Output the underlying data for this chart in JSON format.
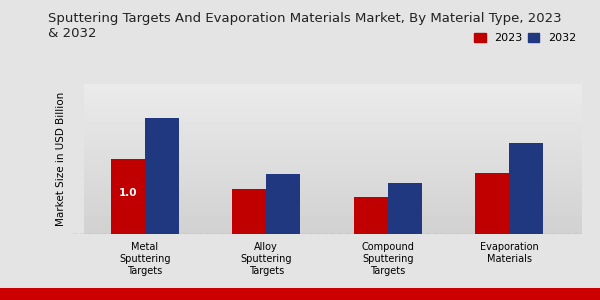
{
  "title": "Sputtering Targets And Evaporation Materials Market, By Material Type, 2023\n& 2032",
  "ylabel": "Market Size in USD Billion",
  "categories": [
    "Metal\nSputtering\nTargets",
    "Alloy\nSputtering\nTargets",
    "Compound\nSputtering\nTargets",
    "Evaporation\nMaterials"
  ],
  "values_2023": [
    1.0,
    0.6,
    0.5,
    0.82
  ],
  "values_2032": [
    1.55,
    0.8,
    0.68,
    1.22
  ],
  "color_2023": "#c00000",
  "color_2032": "#1f3880",
  "bar_annotation_text": "1.0",
  "annotation_fontsize": 7.5,
  "title_fontsize": 9.5,
  "ylabel_fontsize": 7.5,
  "legend_labels": [
    "2023",
    "2032"
  ],
  "legend_fontsize": 8,
  "background_color_top": "#f0f0f0",
  "background_color_bottom": "#d8d8d8",
  "background_color": "#e4e4e4",
  "ylim": [
    0,
    2.0
  ],
  "bar_width": 0.28,
  "tick_fontsize": 7,
  "bottom_bar_strip_color": "#cc0000"
}
